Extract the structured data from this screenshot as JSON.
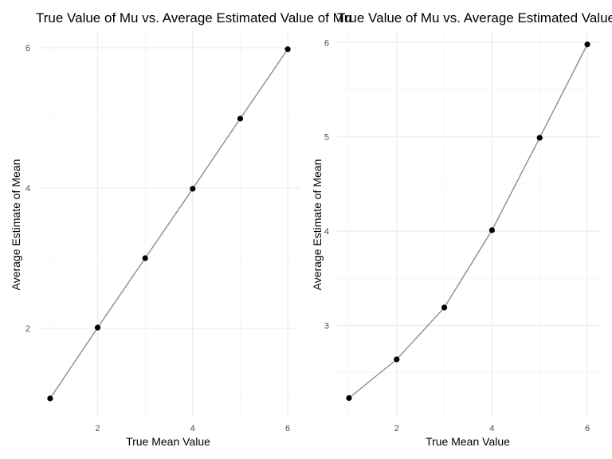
{
  "chart_data": [
    {
      "type": "line",
      "title": "True Value of Mu vs. Average Estimated Value of Mu",
      "xlabel": "True Mean Value",
      "ylabel": "Average Estimate of Mean",
      "x": [
        1,
        2,
        3,
        4,
        5,
        6
      ],
      "y": [
        1.0,
        2.01,
        3.0,
        3.99,
        4.99,
        5.98
      ],
      "xlim": [
        0.75,
        6.25
      ],
      "ylim": [
        0.75,
        6.25
      ],
      "xticks": [
        2,
        4,
        6
      ],
      "yticks": [
        2,
        4,
        6
      ],
      "grid": true,
      "markers": true,
      "line_color": "#8c8c8c",
      "point_color": "#000000"
    },
    {
      "type": "line",
      "title": "True Value of Mu vs. Average Estimated Value of Mu",
      "xlabel": "True Mean Value",
      "ylabel": "Average Estimate of Mean",
      "x": [
        1,
        2,
        3,
        4,
        5,
        6
      ],
      "y": [
        2.23,
        2.64,
        3.19,
        4.01,
        4.99,
        5.98
      ],
      "xlim": [
        0.75,
        6.25
      ],
      "ylim": [
        2.04,
        6.13
      ],
      "xticks": [
        2,
        4,
        6
      ],
      "yticks": [
        3,
        4,
        5,
        6
      ],
      "grid": true,
      "markers": true,
      "line_color": "#8c8c8c",
      "point_color": "#000000"
    }
  ]
}
